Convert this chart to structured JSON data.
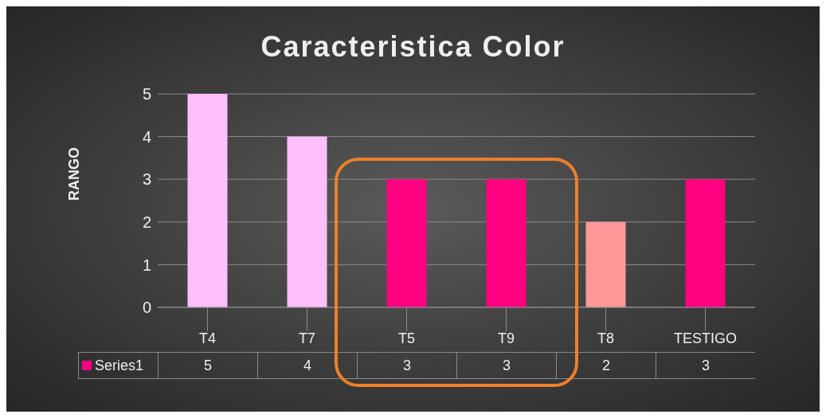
{
  "chart_data": {
    "type": "bar",
    "title": "Caracteristica Color",
    "ylabel": "RANGO",
    "categories": [
      "T4",
      "T7",
      "T5",
      "T9",
      "T8",
      "TESTIGO"
    ],
    "series": [
      {
        "name": "Series1",
        "color": "#ff0080",
        "colors": [
          "#ffbfff",
          "#ffbfff",
          "#ff0080",
          "#ff0080",
          "#ff9999",
          "#ff0080"
        ],
        "values": [
          5,
          4,
          3,
          3,
          2,
          3
        ]
      }
    ],
    "ylim": [
      0,
      5
    ],
    "yticks": [
      0,
      1,
      2,
      3,
      4,
      5
    ],
    "grid": "y",
    "legend": "bottom",
    "data_labels": true
  }
}
